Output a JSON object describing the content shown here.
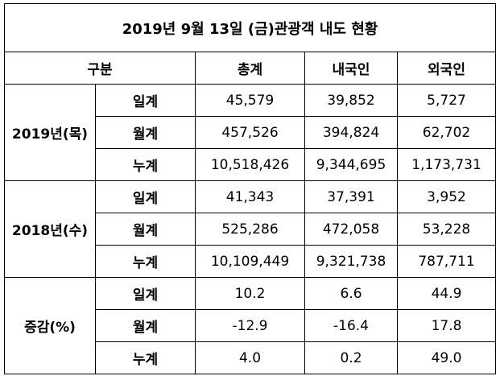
{
  "title": "2019년 9월 13일 (금)관광객 내도 현황",
  "table": {
    "header": [
      "구분",
      "총계",
      "내국인",
      "외국인"
    ],
    "groups": [
      {
        "label": "2019년(목)",
        "rows": [
          [
            "일계",
            "45,579",
            "39,852",
            "5,727"
          ],
          [
            "월계",
            "457,526",
            "394,824",
            "62,702"
          ],
          [
            "누계",
            "10,518,426",
            "9,344,695",
            "1,173,731"
          ]
        ]
      },
      {
        "label": "2018년(수)",
        "rows": [
          [
            "일계",
            "41,343",
            "37,391",
            "3,952"
          ],
          [
            "월계",
            "525,286",
            "472,058",
            "53,228"
          ],
          [
            "누계",
            "10,109,449",
            "9,321,738",
            "787,711"
          ]
        ]
      },
      {
        "label": "증감(%)",
        "rows": [
          [
            "일계",
            "10.2",
            "6.6",
            "44.9"
          ],
          [
            "월계",
            "-12.9",
            "-16.4",
            "17.8"
          ],
          [
            "누계",
            "4.0",
            "0.2",
            "49.0"
          ]
        ]
      }
    ]
  }
}
